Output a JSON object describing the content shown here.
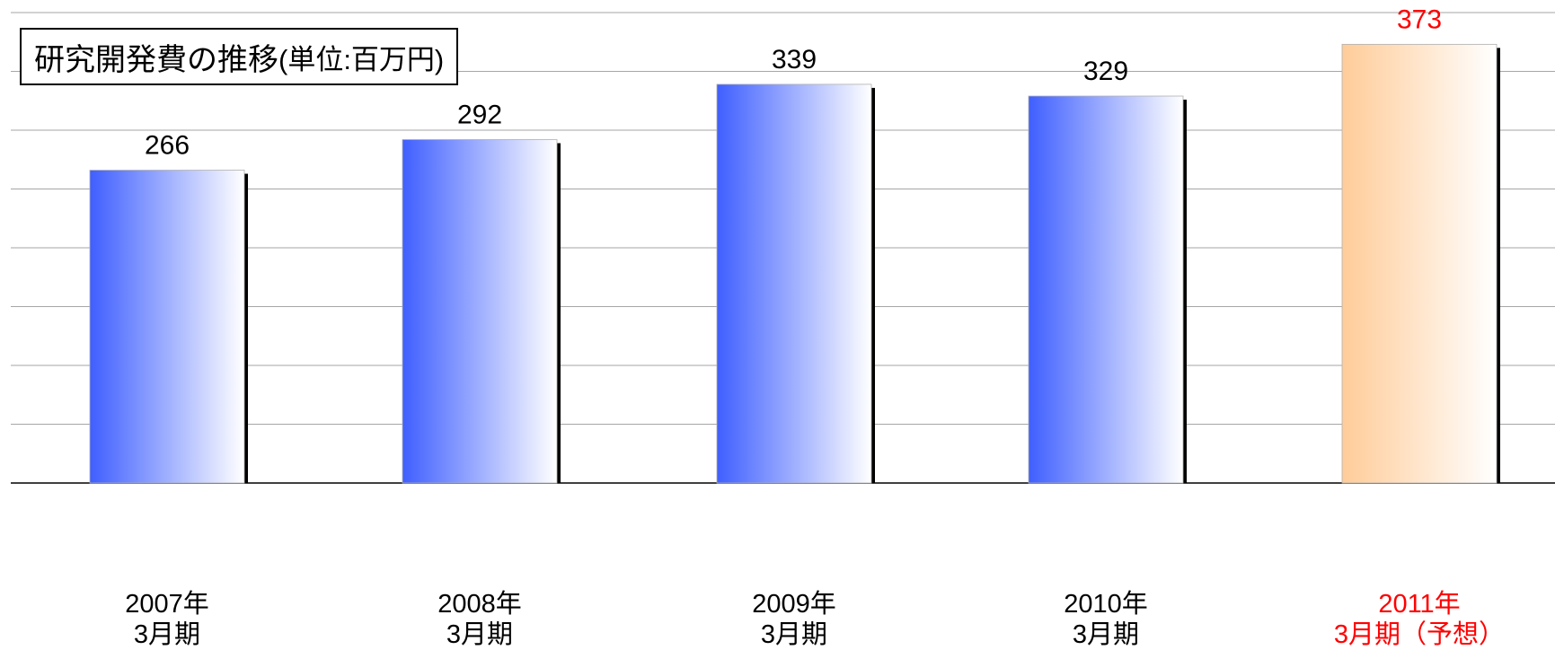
{
  "title": {
    "main": "研究開発費の推移",
    "unit": "(単位:百万円)"
  },
  "colors": {
    "actual_start": "#3f5fff",
    "actual_end": "#ffffff",
    "forecast_start": "#ffcc99",
    "forecast_end": "#ffffff",
    "forecast_text": "#ff0000",
    "grid": "#a6a6a6",
    "axis": "#000000"
  },
  "chart_data": {
    "type": "bar",
    "title": "研究開発費の推移(単位:百万円)",
    "categories": [
      {
        "line1": "2007年",
        "line2": "3月期"
      },
      {
        "line1": "2008年",
        "line2": "3月期"
      },
      {
        "line1": "2009年",
        "line2": "3月期"
      },
      {
        "line1": "2010年",
        "line2": "3月期"
      },
      {
        "line1": "2011年",
        "line2": "3月期（予想）"
      }
    ],
    "values": [
      266,
      292,
      339,
      329,
      373
    ],
    "data_labels": [
      "266",
      "292",
      "339",
      "329",
      "373"
    ],
    "forecast": [
      false,
      false,
      false,
      false,
      true
    ],
    "ylim": [
      0,
      400
    ],
    "grid": true,
    "xlabel": "",
    "ylabel": ""
  }
}
